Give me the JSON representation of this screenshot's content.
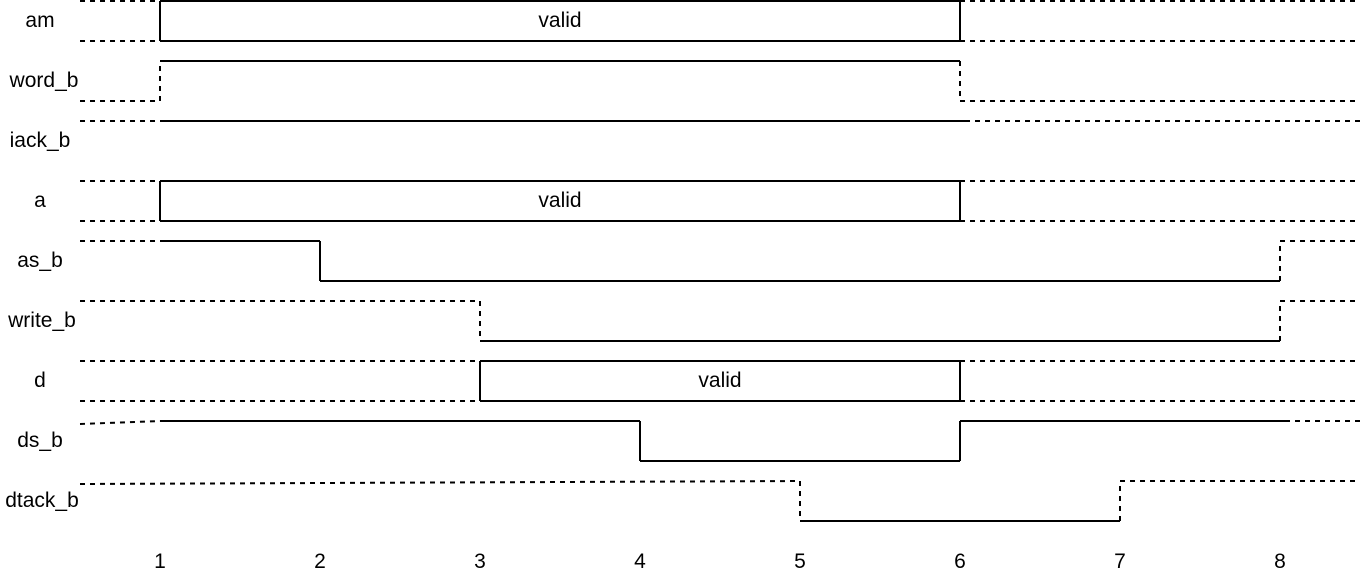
{
  "diagram": {
    "signals": [
      {
        "name": "am"
      },
      {
        "name": "word_b"
      },
      {
        "name": "iack_b"
      },
      {
        "name": "a"
      },
      {
        "name": "as_b"
      },
      {
        "name": "write_b"
      },
      {
        "name": "d"
      },
      {
        "name": "ds_b"
      },
      {
        "name": "dtack_b"
      }
    ],
    "bus_label": "valid",
    "time_labels": [
      "1",
      "2",
      "3",
      "4",
      "5",
      "6",
      "7",
      "8"
    ]
  }
}
